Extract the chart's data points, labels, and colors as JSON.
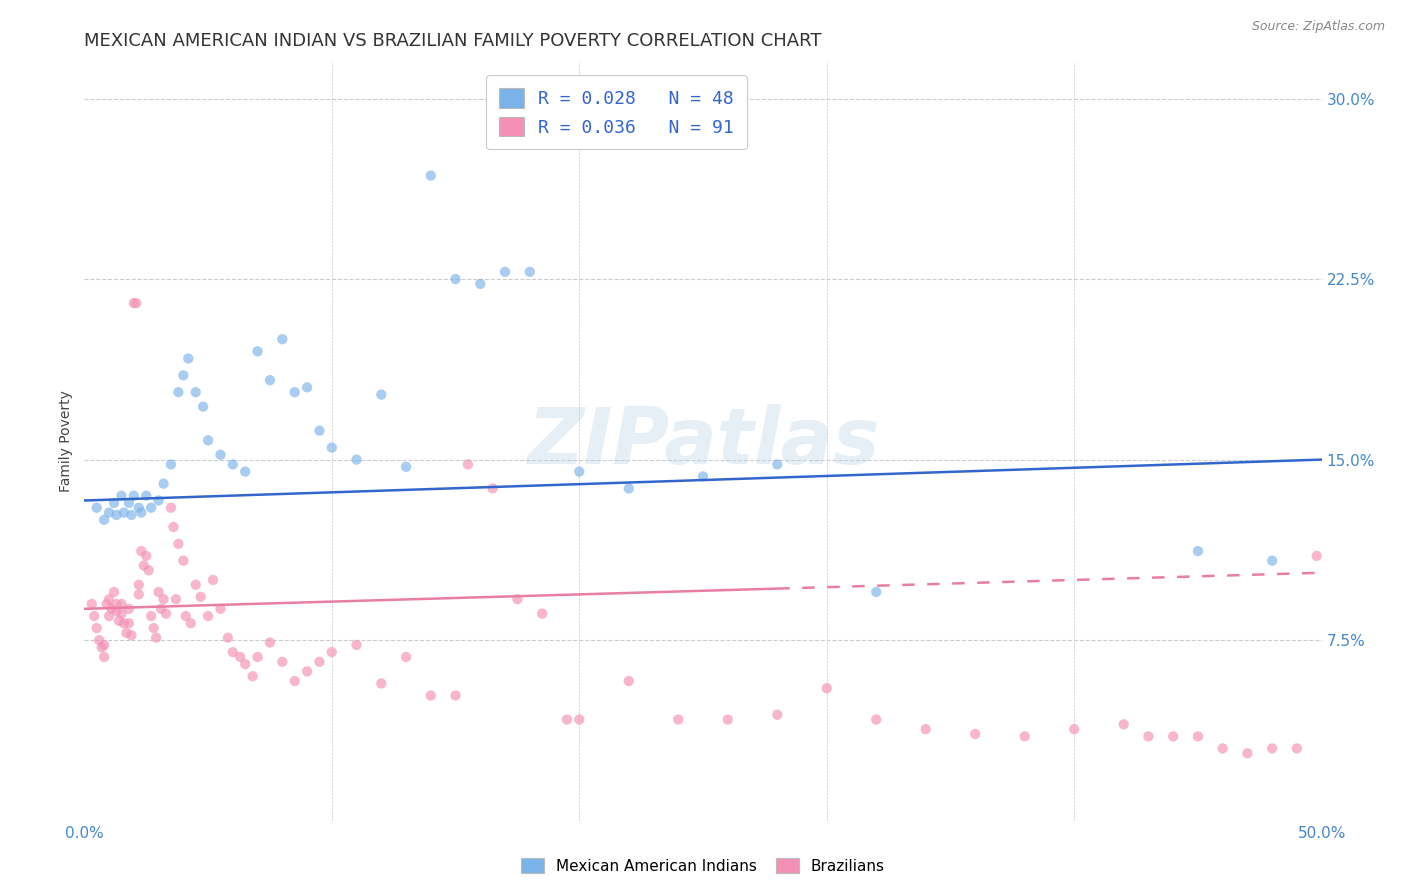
{
  "title": "MEXICAN AMERICAN INDIAN VS BRAZILIAN FAMILY POVERTY CORRELATION CHART",
  "source": "Source: ZipAtlas.com",
  "ylabel": "Family Poverty",
  "yticks": [
    0.0,
    0.075,
    0.15,
    0.225,
    0.3
  ],
  "ytick_labels": [
    "",
    "7.5%",
    "15.0%",
    "22.5%",
    "30.0%"
  ],
  "xlim": [
    0.0,
    0.5
  ],
  "ylim": [
    0.0,
    0.315
  ],
  "legend_label1": "Mexican American Indians",
  "legend_label2": "Brazilians",
  "watermark": "ZIPatlas",
  "blue_color": "#7ab3e8",
  "pink_color": "#f490b5",
  "line_blue": "#3366cc",
  "line_pink": "#e87fa0",
  "blue_scatter_x": [
    0.005,
    0.008,
    0.01,
    0.012,
    0.013,
    0.015,
    0.016,
    0.018,
    0.019,
    0.02,
    0.022,
    0.023,
    0.025,
    0.027,
    0.03,
    0.032,
    0.035,
    0.038,
    0.04,
    0.042,
    0.045,
    0.048,
    0.05,
    0.055,
    0.06,
    0.065,
    0.07,
    0.075,
    0.08,
    0.085,
    0.09,
    0.095,
    0.1,
    0.11,
    0.12,
    0.13,
    0.14,
    0.15,
    0.16,
    0.17,
    0.18,
    0.2,
    0.22,
    0.25,
    0.28,
    0.32,
    0.45,
    0.48
  ],
  "blue_scatter_y": [
    0.13,
    0.125,
    0.128,
    0.132,
    0.127,
    0.135,
    0.128,
    0.132,
    0.127,
    0.135,
    0.13,
    0.128,
    0.135,
    0.13,
    0.133,
    0.14,
    0.148,
    0.178,
    0.185,
    0.192,
    0.178,
    0.172,
    0.158,
    0.152,
    0.148,
    0.145,
    0.195,
    0.183,
    0.2,
    0.178,
    0.18,
    0.162,
    0.155,
    0.15,
    0.177,
    0.147,
    0.268,
    0.225,
    0.223,
    0.228,
    0.228,
    0.145,
    0.138,
    0.143,
    0.148,
    0.095,
    0.112,
    0.108
  ],
  "pink_scatter_x": [
    0.003,
    0.004,
    0.005,
    0.006,
    0.007,
    0.008,
    0.008,
    0.009,
    0.01,
    0.01,
    0.011,
    0.012,
    0.013,
    0.013,
    0.014,
    0.015,
    0.015,
    0.016,
    0.017,
    0.018,
    0.018,
    0.019,
    0.02,
    0.021,
    0.022,
    0.022,
    0.023,
    0.024,
    0.025,
    0.026,
    0.027,
    0.028,
    0.029,
    0.03,
    0.031,
    0.032,
    0.033,
    0.035,
    0.036,
    0.037,
    0.038,
    0.04,
    0.041,
    0.043,
    0.045,
    0.047,
    0.05,
    0.052,
    0.055,
    0.058,
    0.06,
    0.063,
    0.065,
    0.068,
    0.07,
    0.075,
    0.08,
    0.085,
    0.09,
    0.095,
    0.1,
    0.11,
    0.12,
    0.13,
    0.14,
    0.15,
    0.155,
    0.165,
    0.175,
    0.185,
    0.195,
    0.2,
    0.22,
    0.24,
    0.26,
    0.28,
    0.3,
    0.32,
    0.34,
    0.36,
    0.38,
    0.4,
    0.42,
    0.43,
    0.44,
    0.45,
    0.46,
    0.47,
    0.48,
    0.49,
    0.498
  ],
  "pink_scatter_y": [
    0.09,
    0.085,
    0.08,
    0.075,
    0.072,
    0.068,
    0.073,
    0.09,
    0.085,
    0.092,
    0.088,
    0.095,
    0.09,
    0.087,
    0.083,
    0.09,
    0.086,
    0.082,
    0.078,
    0.088,
    0.082,
    0.077,
    0.215,
    0.215,
    0.098,
    0.094,
    0.112,
    0.106,
    0.11,
    0.104,
    0.085,
    0.08,
    0.076,
    0.095,
    0.088,
    0.092,
    0.086,
    0.13,
    0.122,
    0.092,
    0.115,
    0.108,
    0.085,
    0.082,
    0.098,
    0.093,
    0.085,
    0.1,
    0.088,
    0.076,
    0.07,
    0.068,
    0.065,
    0.06,
    0.068,
    0.074,
    0.066,
    0.058,
    0.062,
    0.066,
    0.07,
    0.073,
    0.057,
    0.068,
    0.052,
    0.052,
    0.148,
    0.138,
    0.092,
    0.086,
    0.042,
    0.042,
    0.058,
    0.042,
    0.042,
    0.044,
    0.055,
    0.042,
    0.038,
    0.036,
    0.035,
    0.038,
    0.04,
    0.035,
    0.035,
    0.035,
    0.03,
    0.028,
    0.03,
    0.03,
    0.11
  ],
  "blue_line_x": [
    0.0,
    0.5
  ],
  "blue_line_y": [
    0.133,
    0.15
  ],
  "pink_line_x": [
    0.0,
    0.5
  ],
  "pink_line_y": [
    0.088,
    0.103
  ],
  "pink_line_dashed_start": 0.28,
  "bg_color": "#ffffff",
  "grid_color": "#cccccc",
  "tick_color": "#4488cc",
  "title_fontsize": 13,
  "axis_label_fontsize": 10,
  "scatter_size": 55,
  "scatter_alpha": 0.65,
  "legend1_r": "R = 0.028",
  "legend1_n": "N = 48",
  "legend2_r": "R = 0.036",
  "legend2_n": "N = 91"
}
